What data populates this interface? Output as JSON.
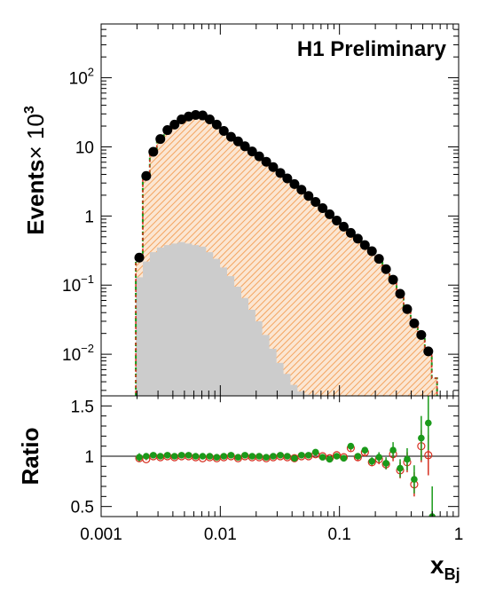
{
  "chart_data": [
    {
      "type": "histogram",
      "annotation": "H1 Preliminary",
      "ylabel": "Events",
      "ylabel_suffix": "× 10",
      "ylabel_exponent": "3",
      "xscale": "log",
      "yscale": "log",
      "xlim": [
        0.001,
        1
      ],
      "ylim": [
        0.0025,
        600
      ],
      "ytick_labels": [
        {
          "value": 0.01,
          "base": "10",
          "exp": "−2"
        },
        {
          "value": 0.1,
          "base": "10",
          "exp": "−1"
        },
        {
          "value": 1,
          "base": "1",
          "exp": ""
        },
        {
          "value": 10,
          "base": "10",
          "exp": ""
        },
        {
          "value": 100,
          "base": "10",
          "exp": "2"
        }
      ],
      "grid": false,
      "legend": "none",
      "colors": {
        "data": "#000000",
        "mc_fill": "#f4a460",
        "mc_line_1": "#d62f1f",
        "mc_line_2": "#1a9a1a",
        "background": "#cccccc"
      },
      "data_points": {
        "x": [
          0.00209,
          0.00239,
          0.00274,
          0.00314,
          0.0036,
          0.00413,
          0.00473,
          0.00542,
          0.00621,
          0.00711,
          0.00815,
          0.00934,
          0.0107,
          0.0123,
          0.0141,
          0.0161,
          0.0185,
          0.0212,
          0.0243,
          0.0278,
          0.0319,
          0.0365,
          0.0419,
          0.048,
          0.055,
          0.063,
          0.0722,
          0.0827,
          0.0948,
          0.1086,
          0.1244,
          0.1426,
          0.1634,
          0.1872,
          0.2145,
          0.2458,
          0.2817,
          0.3228,
          0.3699,
          0.4238,
          0.4857,
          0.5565
        ],
        "y": [
          0.25,
          3.8,
          8.5,
          13,
          17.5,
          21,
          25,
          27.5,
          29,
          28.5,
          25,
          21,
          17,
          14,
          12,
          10.2,
          8.6,
          7.3,
          6.1,
          5.1,
          4.2,
          3.5,
          2.9,
          2.4,
          1.95,
          1.6,
          1.3,
          1.06,
          0.86,
          0.7,
          0.57,
          0.47,
          0.38,
          0.31,
          0.24,
          0.17,
          0.12,
          0.075,
          0.045,
          0.028,
          0.019,
          0.011
        ]
      },
      "background_bins": {
        "edges": [
          0.00195,
          0.00224,
          0.00256,
          0.00294,
          0.00336,
          0.00385,
          0.00441,
          0.00506,
          0.00579,
          0.00664,
          0.0076,
          0.0087,
          0.00997,
          0.0114,
          0.0131,
          0.015,
          0.0172,
          0.0197,
          0.0225,
          0.0258,
          0.0296,
          0.0339,
          0.0388,
          0.0444,
          0.0509,
          0.0583,
          0.0667
        ],
        "values": [
          0.13,
          0.22,
          0.3,
          0.35,
          0.38,
          0.4,
          0.42,
          0.4,
          0.38,
          0.36,
          0.3,
          0.24,
          0.18,
          0.135,
          0.095,
          0.065,
          0.044,
          0.03,
          0.019,
          0.012,
          0.0075,
          0.0052,
          0.0036,
          0.0029,
          0.0026,
          0.0026
        ]
      }
    },
    {
      "type": "scatter",
      "ylabel": "Ratio",
      "xlabel_main": "x",
      "xlabel_sub": "Bj",
      "xscale": "log",
      "xlim": [
        0.001,
        1
      ],
      "ylim": [
        0.4,
        1.6
      ],
      "reference_line": 1,
      "xtick_labels": [
        {
          "value": 0.001,
          "label": "0.001"
        },
        {
          "value": 0.01,
          "label": "0.01"
        },
        {
          "value": 0.1,
          "label": "0.1"
        },
        {
          "value": 1,
          "label": "1"
        }
      ],
      "ytick_labels": [
        {
          "value": 0.5,
          "label": "0.5"
        },
        {
          "value": 1,
          "label": "1"
        },
        {
          "value": 1.5,
          "label": "1.5"
        }
      ],
      "series": [
        {
          "marker": "open-circle",
          "color": "#d62f1f",
          "x": [
            0.00209,
            0.00239,
            0.00274,
            0.00314,
            0.0036,
            0.00413,
            0.00473,
            0.00542,
            0.00621,
            0.00711,
            0.00815,
            0.00934,
            0.0107,
            0.0123,
            0.0141,
            0.0161,
            0.0185,
            0.0212,
            0.0243,
            0.0278,
            0.0319,
            0.0365,
            0.0419,
            0.048,
            0.055,
            0.063,
            0.0722,
            0.0827,
            0.0948,
            0.1086,
            0.1244,
            0.1426,
            0.1634,
            0.1872,
            0.2145,
            0.2458,
            0.2817,
            0.3228,
            0.3699,
            0.4238,
            0.4857,
            0.5565
          ],
          "y": [
            0.98,
            0.97,
            1.0,
            0.99,
            1.0,
            0.99,
            1.0,
            1.0,
            0.99,
            0.98,
            0.99,
            0.98,
            0.99,
            1.0,
            0.98,
            1.0,
            0.99,
            0.99,
            0.98,
            0.99,
            1.0,
            0.99,
            0.98,
            1.0,
            1.0,
            1.02,
            1.0,
            0.98,
            1.01,
            0.99,
            1.08,
            0.99,
            1.04,
            0.94,
            0.97,
            0.92,
            1.02,
            0.86,
            0.94,
            0.72,
            1.1,
            1.01
          ],
          "err": [
            0.03,
            0.01,
            0.01,
            0.01,
            0.01,
            0.01,
            0.01,
            0.01,
            0.01,
            0.01,
            0.01,
            0.01,
            0.01,
            0.01,
            0.01,
            0.01,
            0.01,
            0.01,
            0.01,
            0.01,
            0.01,
            0.01,
            0.01,
            0.01,
            0.01,
            0.02,
            0.02,
            0.02,
            0.02,
            0.02,
            0.03,
            0.03,
            0.03,
            0.04,
            0.05,
            0.05,
            0.07,
            0.08,
            0.1,
            0.12,
            0.16,
            0.2
          ]
        },
        {
          "marker": "filled-circle",
          "color": "#1a9a1a",
          "x": [
            0.00209,
            0.00239,
            0.00274,
            0.00314,
            0.0036,
            0.00413,
            0.00473,
            0.00542,
            0.00621,
            0.00711,
            0.00815,
            0.00934,
            0.0107,
            0.0123,
            0.0141,
            0.0161,
            0.0185,
            0.0212,
            0.0243,
            0.0278,
            0.0319,
            0.0365,
            0.0419,
            0.048,
            0.055,
            0.063,
            0.0722,
            0.0827,
            0.0948,
            0.1086,
            0.1244,
            0.1426,
            0.1634,
            0.1872,
            0.2145,
            0.2458,
            0.2817,
            0.3228,
            0.3699,
            0.4238,
            0.4857,
            0.5565,
            0.6
          ],
          "y": [
            0.99,
            1.0,
            1.01,
            1.0,
            1.01,
            1.0,
            1.01,
            1.01,
            1.0,
            1.0,
            1.0,
            0.99,
            1.0,
            1.01,
            0.99,
            1.01,
            1.0,
            1.0,
            0.99,
            1.0,
            1.01,
            1.0,
            0.98,
            1.01,
            1.01,
            1.04,
            0.99,
            0.97,
            1.0,
            0.98,
            1.1,
            1.0,
            1.06,
            0.95,
            0.99,
            0.93,
            1.06,
            0.88,
            0.97,
            0.77,
            1.18,
            1.33,
            0.4
          ],
          "err": [
            0.04,
            0.01,
            0.01,
            0.01,
            0.01,
            0.01,
            0.01,
            0.01,
            0.01,
            0.01,
            0.01,
            0.01,
            0.01,
            0.01,
            0.01,
            0.01,
            0.01,
            0.01,
            0.01,
            0.01,
            0.01,
            0.01,
            0.01,
            0.01,
            0.01,
            0.02,
            0.02,
            0.02,
            0.02,
            0.02,
            0.03,
            0.03,
            0.03,
            0.04,
            0.05,
            0.06,
            0.08,
            0.09,
            0.11,
            0.14,
            0.22,
            0.27,
            0.3
          ]
        }
      ]
    }
  ]
}
